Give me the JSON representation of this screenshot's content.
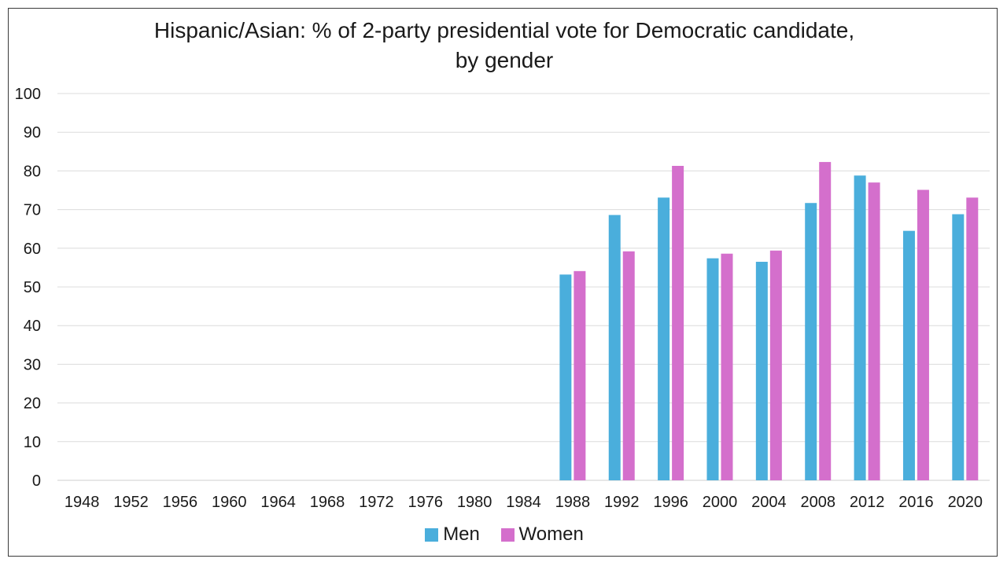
{
  "chart_data": {
    "type": "bar",
    "title": "Hispanic/Asian: % of 2-party presidential vote for Democratic candidate,",
    "subtitle": "by gender",
    "xlabel": "",
    "ylabel": "",
    "ylim": [
      0,
      100
    ],
    "yticks": [
      0,
      10,
      20,
      30,
      40,
      50,
      60,
      70,
      80,
      90,
      100
    ],
    "grid": true,
    "legend_position": "bottom",
    "categories": [
      "1948",
      "1952",
      "1956",
      "1960",
      "1964",
      "1968",
      "1972",
      "1976",
      "1980",
      "1984",
      "1988",
      "1992",
      "1996",
      "2000",
      "2004",
      "2008",
      "2012",
      "2016",
      "2020"
    ],
    "series": [
      {
        "name": "Men",
        "color": "#4aaedc",
        "values": [
          null,
          null,
          null,
          null,
          null,
          null,
          null,
          null,
          null,
          null,
          53.2,
          68.6,
          73.1,
          57.4,
          56.5,
          71.7,
          78.8,
          64.5,
          68.8
        ]
      },
      {
        "name": "Women",
        "color": "#d46fcc",
        "values": [
          null,
          null,
          null,
          null,
          null,
          null,
          null,
          null,
          null,
          null,
          54.1,
          59.2,
          81.3,
          58.6,
          59.4,
          82.3,
          77.0,
          75.1,
          73.1
        ]
      }
    ]
  }
}
